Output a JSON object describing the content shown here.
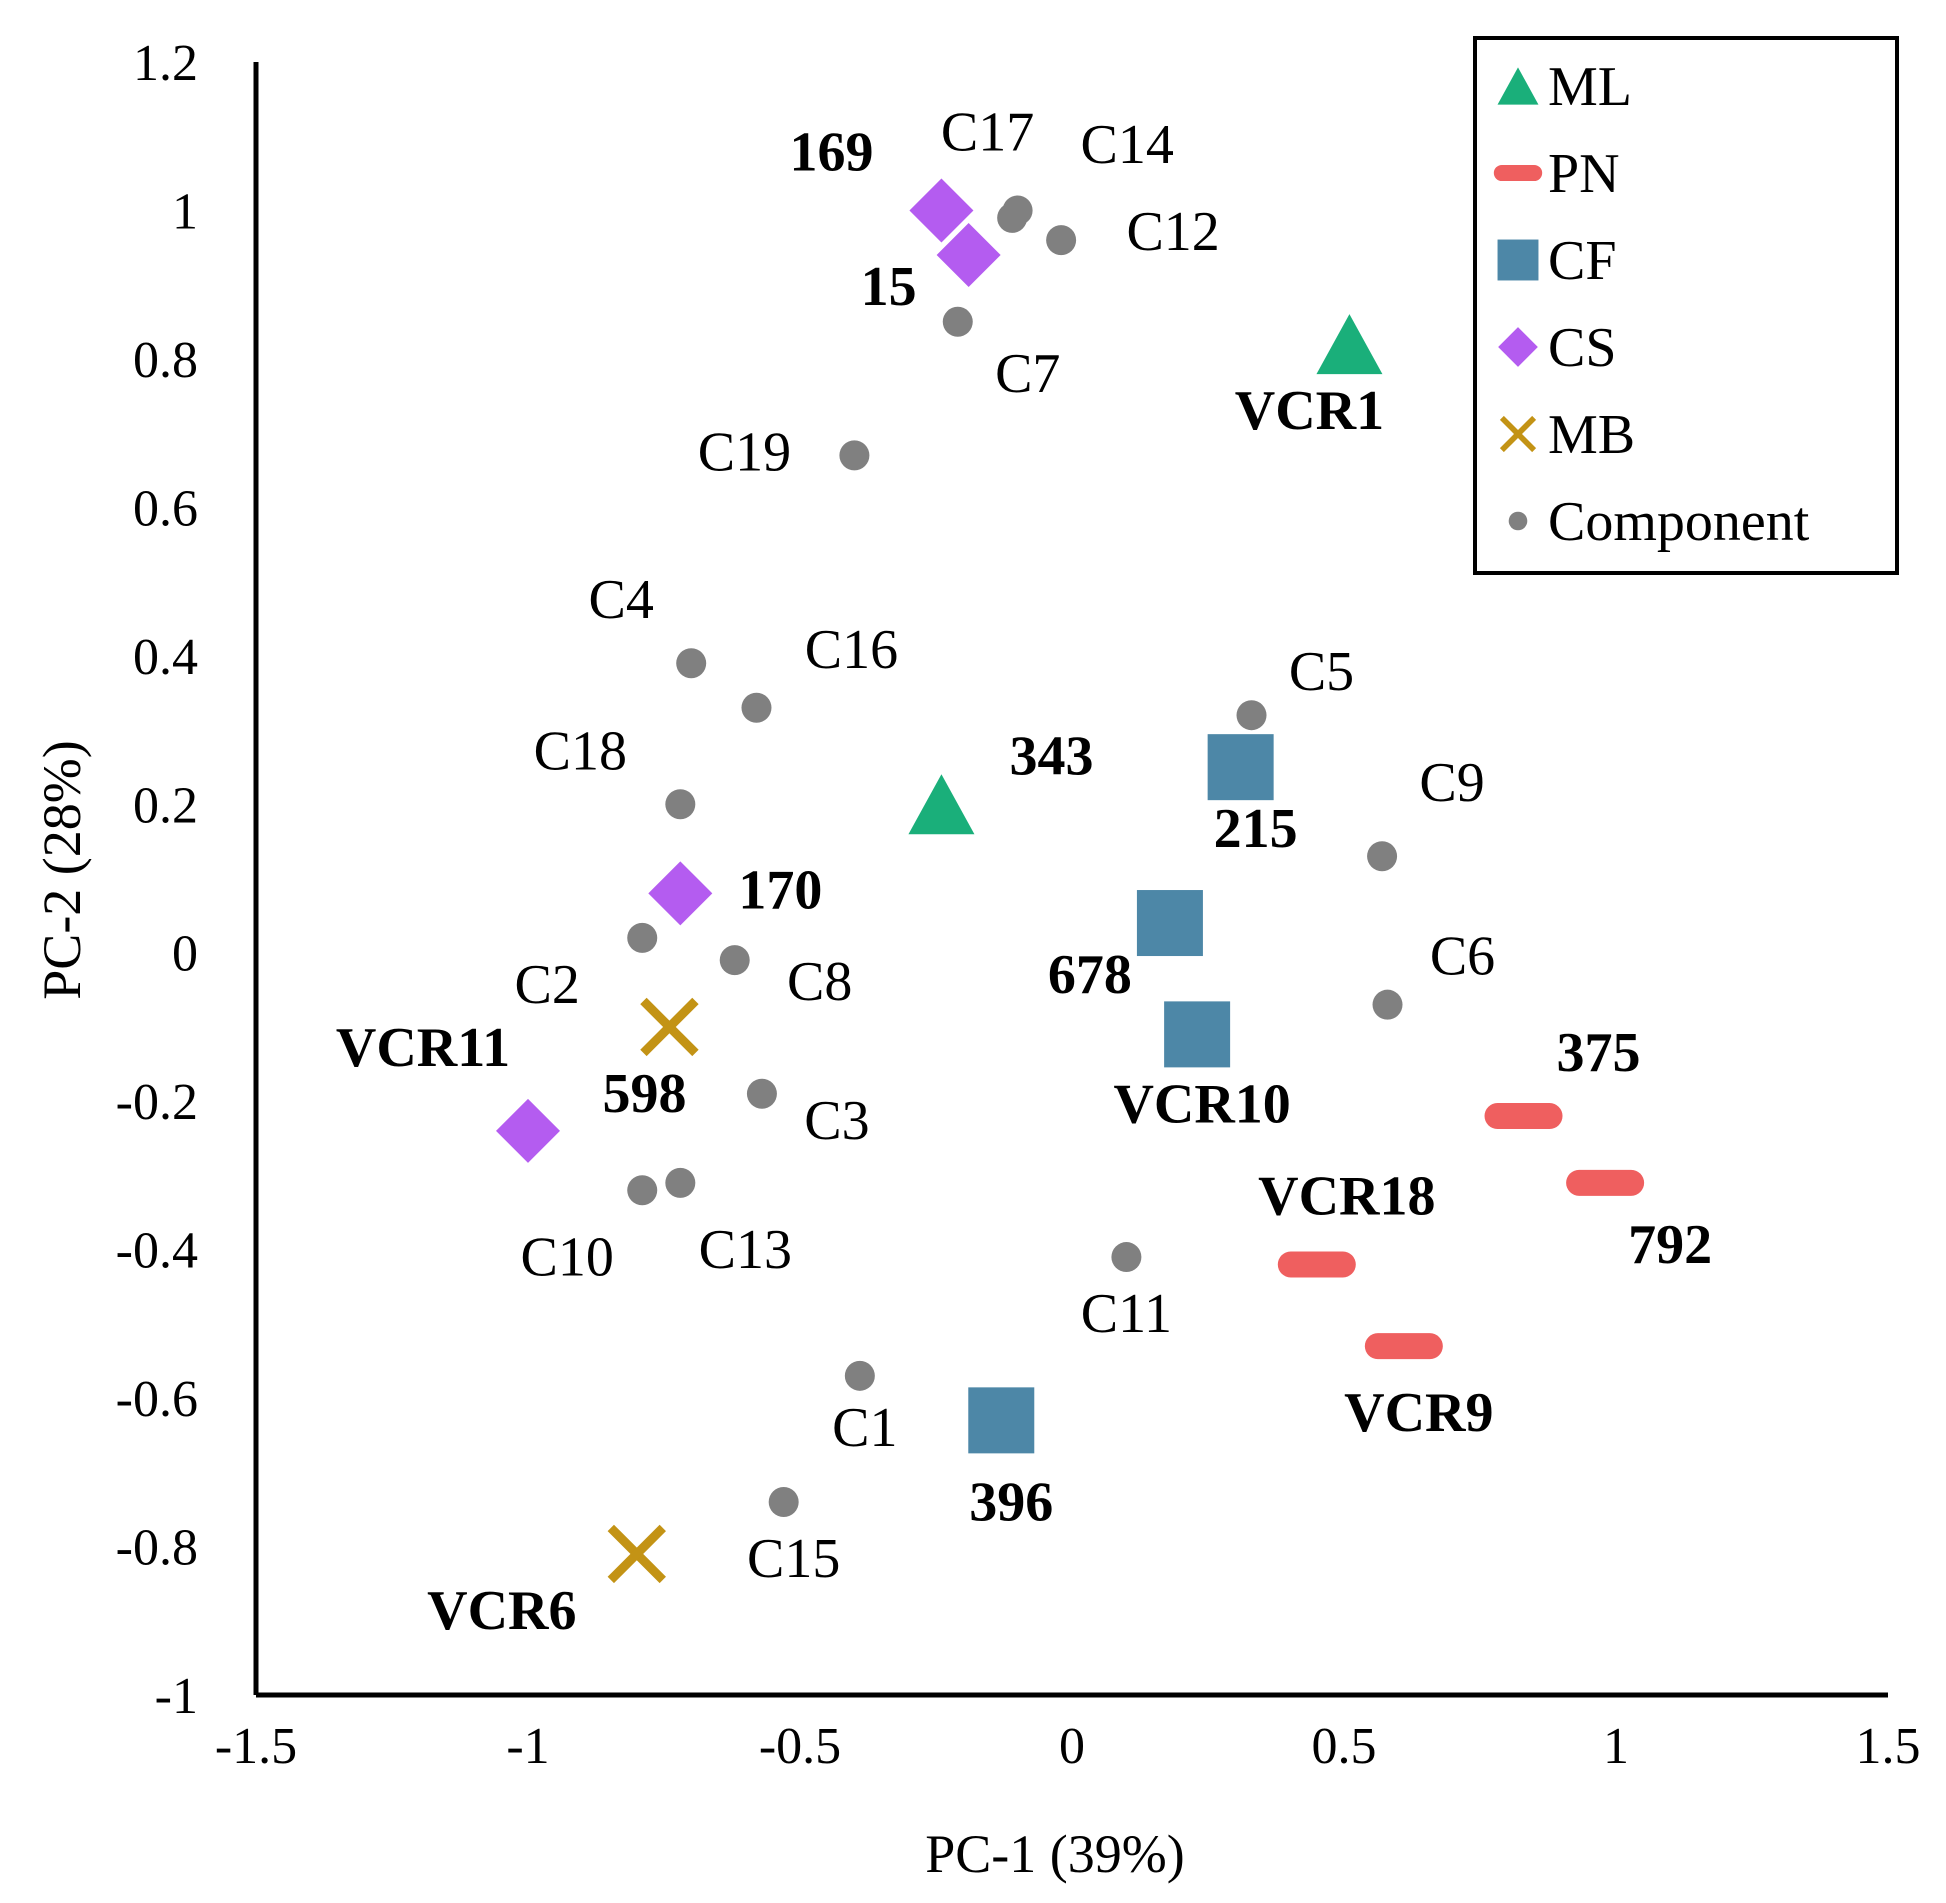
{
  "chart_data": {
    "type": "scatter",
    "xlabel": "PC-1 (39%)",
    "ylabel": "PC-2 (28%)",
    "xlim": [
      -1.5,
      1.5
    ],
    "ylim": [
      -1,
      1.2
    ],
    "x_ticks": [
      "-1.5",
      "-1",
      "-0.5",
      "0",
      "0.5",
      "1",
      "1.5"
    ],
    "y_ticks": [
      "1.2",
      "1",
      "0.8",
      "0.6",
      "0.4",
      "0.2",
      "0",
      "-0.2",
      "-0.4",
      "-0.6",
      "-0.8",
      "-1"
    ],
    "grid": false,
    "legend_position": "top-right",
    "series": [
      {
        "name": "ML",
        "marker": "triangle",
        "color": "#1aaf7a",
        "points": [
          {
            "label": "VCR1",
            "x": 0.51,
            "y": 0.82
          },
          {
            "label": "343",
            "x": -0.24,
            "y": 0.2
          }
        ]
      },
      {
        "name": "PN",
        "marker": "dash",
        "color": "#ef5f5f",
        "points": [
          {
            "label": "375",
            "x": 0.83,
            "y": -0.22
          },
          {
            "label": "792",
            "x": 0.98,
            "y": -0.31
          },
          {
            "label": "VCR18",
            "x": 0.45,
            "y": -0.42
          },
          {
            "label": "VCR9",
            "x": 0.61,
            "y": -0.53
          }
        ]
      },
      {
        "name": "CF",
        "marker": "square",
        "color": "#4d87a7",
        "points": [
          {
            "label": "215",
            "x": 0.31,
            "y": 0.25
          },
          {
            "label": "678",
            "x": 0.18,
            "y": 0.04
          },
          {
            "label": "VCR10",
            "x": 0.23,
            "y": -0.11
          },
          {
            "label": "396",
            "x": -0.13,
            "y": -0.63
          }
        ]
      },
      {
        "name": "CS",
        "marker": "diamond",
        "color": "#b45cf0",
        "points": [
          {
            "label": "169",
            "x": -0.24,
            "y": 1.0
          },
          {
            "label": "15",
            "x": -0.19,
            "y": 0.94
          },
          {
            "label": "170",
            "x": -0.72,
            "y": 0.08
          },
          {
            "label": "VCR11",
            "x": -1.0,
            "y": -0.24
          }
        ]
      },
      {
        "name": "MB",
        "marker": "cross",
        "color": "#c39315",
        "points": [
          {
            "label": "598",
            "x": -0.74,
            "y": -0.1
          },
          {
            "label": "VCR6",
            "x": -0.8,
            "y": -0.81
          }
        ]
      },
      {
        "name": "Component",
        "marker": "circle",
        "color": "#808080",
        "points": [
          {
            "label": "C17",
            "x": -0.1,
            "y": 1.0
          },
          {
            "label": "C14",
            "x": -0.11,
            "y": 0.99
          },
          {
            "label": "C12",
            "x": -0.02,
            "y": 0.96
          },
          {
            "label": "C7",
            "x": -0.21,
            "y": 0.85
          },
          {
            "label": "C19",
            "x": -0.4,
            "y": 0.67
          },
          {
            "label": "C4",
            "x": -0.7,
            "y": 0.39
          },
          {
            "label": "C16",
            "x": -0.58,
            "y": 0.33
          },
          {
            "label": "C18",
            "x": -0.72,
            "y": 0.2
          },
          {
            "label": "C5",
            "x": 0.33,
            "y": 0.32
          },
          {
            "label": "C9",
            "x": 0.57,
            "y": 0.13
          },
          {
            "label": "C2",
            "x": -0.79,
            "y": 0.02
          },
          {
            "label": "C8",
            "x": -0.62,
            "y": -0.01
          },
          {
            "label": "C6",
            "x": 0.58,
            "y": -0.07
          },
          {
            "label": "C3",
            "x": -0.57,
            "y": -0.19
          },
          {
            "label": "C10",
            "x": -0.79,
            "y": -0.32
          },
          {
            "label": "C13",
            "x": -0.72,
            "y": -0.31
          },
          {
            "label": "C11",
            "x": 0.1,
            "y": -0.41
          },
          {
            "label": "C1",
            "x": -0.39,
            "y": -0.57
          },
          {
            "label": "C15",
            "x": -0.53,
            "y": -0.74
          }
        ]
      }
    ]
  }
}
